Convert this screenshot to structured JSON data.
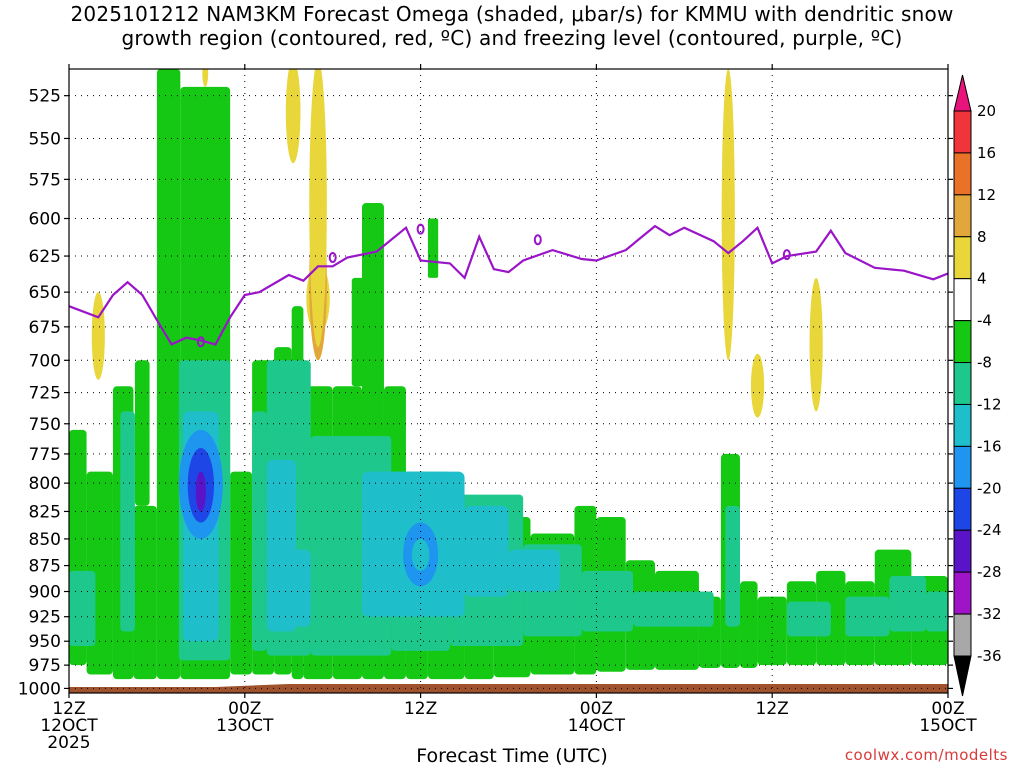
{
  "chart_data": {
    "type": "heatmap",
    "title_line1": "2025101212 NAM3KM Forecast Omega (shaded, μbar/s) for KMMU with dendritic snow",
    "title_line2": "growth region (contoured, red, ºC) and freezing level (contoured, purple, ºC)",
    "xlabel": "Forecast Time (UTC)",
    "ylabel": "",
    "x_range_hours": [
      0,
      60
    ],
    "y_range_mb": [
      1005,
      510
    ],
    "y_scale": "log-pressure",
    "grid": "dotted",
    "y_ticks": [
      "525",
      "550",
      "575",
      "600",
      "625",
      "650",
      "675",
      "700",
      "725",
      "750",
      "775",
      "800",
      "825",
      "850",
      "875",
      "900",
      "925",
      "950",
      "975",
      "1000"
    ],
    "x_ticks": [
      {
        "hour": 0,
        "line1": "12Z",
        "line2": "12OCT",
        "line3": "2025"
      },
      {
        "hour": 12,
        "line1": "00Z",
        "line2": "13OCT",
        "line3": ""
      },
      {
        "hour": 24,
        "line1": "12Z",
        "line2": "",
        "line3": ""
      },
      {
        "hour": 36,
        "line1": "00Z",
        "line2": "14OCT",
        "line3": ""
      },
      {
        "hour": 48,
        "line1": "12Z",
        "line2": "",
        "line3": ""
      },
      {
        "hour": 60,
        "line1": "00Z",
        "line2": "15OCT",
        "line3": ""
      }
    ],
    "colorbar": {
      "labels": [
        "20",
        "16",
        "12",
        "8",
        "4",
        "-4",
        "-8",
        "-12",
        "-16",
        "-20",
        "-24",
        "-28",
        "-32",
        "-36"
      ],
      "levels": [
        {
          "min": 20,
          "max": null,
          "color": "#e8147c"
        },
        {
          "min": 16,
          "max": 20,
          "color": "#f0353a"
        },
        {
          "min": 12,
          "max": 16,
          "color": "#ea7228"
        },
        {
          "min": 8,
          "max": 12,
          "color": "#e2a73a"
        },
        {
          "min": 4,
          "max": 8,
          "color": "#e8d63a"
        },
        {
          "min": -4,
          "max": 4,
          "color": "#ffffff"
        },
        {
          "min": -8,
          "max": -4,
          "color": "#14c814"
        },
        {
          "min": -12,
          "max": -8,
          "color": "#1ec88c"
        },
        {
          "min": -16,
          "max": -12,
          "color": "#1ebecb"
        },
        {
          "min": -20,
          "max": -16,
          "color": "#1e96f0"
        },
        {
          "min": -24,
          "max": -20,
          "color": "#1e46e6"
        },
        {
          "min": -28,
          "max": -24,
          "color": "#5a14c8"
        },
        {
          "min": -32,
          "max": -28,
          "color": "#a014c8"
        },
        {
          "min": -36,
          "max": -32,
          "color": "#a8a8a8"
        },
        {
          "min": null,
          "max": -36,
          "color": "#000000"
        }
      ]
    },
    "freezing_level": {
      "color": "#9a14c8",
      "points": [
        [
          0,
          660
        ],
        [
          2,
          668
        ],
        [
          3,
          652
        ],
        [
          4,
          643
        ],
        [
          5,
          652
        ],
        [
          6,
          670
        ],
        [
          7,
          688
        ],
        [
          8,
          683
        ],
        [
          9,
          685
        ],
        [
          10,
          688
        ],
        [
          11,
          668
        ],
        [
          12,
          652
        ],
        [
          13,
          650
        ],
        [
          15,
          638
        ],
        [
          16,
          642
        ],
        [
          17,
          632
        ],
        [
          18,
          632
        ],
        [
          19,
          626
        ],
        [
          21,
          622
        ],
        [
          23,
          606
        ],
        [
          24,
          628
        ],
        [
          26,
          630
        ],
        [
          27,
          640
        ],
        [
          28,
          612
        ],
        [
          29,
          634
        ],
        [
          30,
          636
        ],
        [
          31,
          628
        ],
        [
          33,
          621
        ],
        [
          35,
          627
        ],
        [
          36,
          628
        ],
        [
          38,
          621
        ],
        [
          40,
          605
        ],
        [
          41,
          611
        ],
        [
          42,
          606
        ],
        [
          44,
          615
        ],
        [
          45,
          623
        ],
        [
          46,
          615
        ],
        [
          47,
          606
        ],
        [
          48,
          630
        ],
        [
          49,
          625
        ],
        [
          51,
          622
        ],
        [
          52,
          608
        ],
        [
          53,
          623
        ],
        [
          55,
          633
        ],
        [
          57,
          635
        ],
        [
          59,
          641
        ],
        [
          60,
          637
        ]
      ]
    },
    "omega_features": [
      {
        "kind": "ascent_max",
        "value": -24,
        "hour": 9,
        "mb_top": 770,
        "mb_bottom": 835
      },
      {
        "kind": "ascent_max",
        "value": -16,
        "hour": 24,
        "mb_top": 850,
        "mb_bottom": 880
      },
      {
        "kind": "descent_max",
        "value": 16,
        "hour": 17,
        "mb_top": 630,
        "mb_bottom": 680
      },
      {
        "kind": "descent",
        "value": 4,
        "hour": 45,
        "mb_top": 510,
        "mb_bottom": 700
      },
      {
        "kind": "descent",
        "value": 4,
        "hour": 47,
        "mb_top": 695,
        "mb_bottom": 745
      },
      {
        "kind": "descent",
        "value": 4,
        "hour": 51,
        "mb_top": 640,
        "mb_bottom": 740
      },
      {
        "kind": "descent",
        "value": 4,
        "hour": 2,
        "mb_top": 650,
        "mb_bottom": 715
      }
    ],
    "terrain_color": "#a0522d"
  },
  "credit": "coolwx.com/modelts"
}
